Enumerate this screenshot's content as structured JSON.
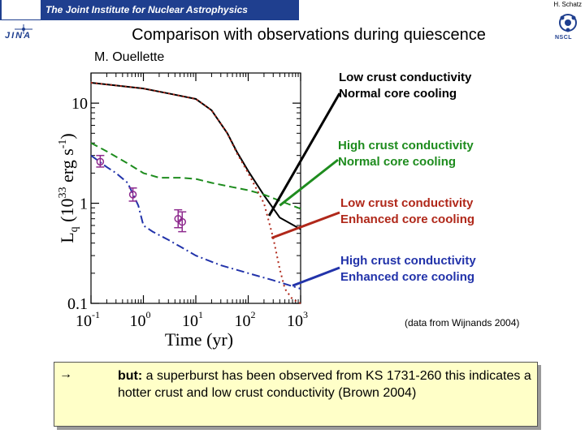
{
  "header": {
    "banner_text": "The Joint Institute for Nuclear Astrophysics",
    "jina_label": "JINA",
    "author": "H. Schatz",
    "nscl_label": "NSCL"
  },
  "slide": {
    "title": "Comparison with observations during quiescence",
    "credit": "M. Ouellette",
    "data_note": "(data from Wijnands 2004)"
  },
  "annotations": [
    {
      "line1": "Low crust conductivity",
      "line2": "Normal core cooling",
      "color": "#000000"
    },
    {
      "line1": "High crust conductivity",
      "line2": "Normal core cooling",
      "color": "#1e8c1e"
    },
    {
      "line1": "Low crust conductivity",
      "line2": "Enhanced core cooling",
      "color": "#b0281a"
    },
    {
      "line1": "High crust conductivity",
      "line2": "Enhanced core cooling",
      "color": "#2233aa"
    }
  ],
  "callout": {
    "arrow": "→",
    "lead": "but:",
    "rest": " a superburst has been observed from KS 1731-260 this indicates a hotter crust and low crust conductivity (Brown 2004)"
  },
  "chart_data": {
    "type": "line",
    "xlabel": "Time (yr)",
    "ylabel": "L_q (10^33 erg s^-1)",
    "xscale": "log",
    "yscale": "log",
    "xlim": [
      0.1,
      1000
    ],
    "ylim": [
      0.1,
      20
    ],
    "xticks": [
      "10^-1",
      "10^0",
      "10^1",
      "10^2",
      "10^3"
    ],
    "yticks": [
      "0.1",
      "1",
      "10"
    ],
    "series": [
      {
        "color": "#000000",
        "style": "solid",
        "x": [
          0.1,
          0.3,
          1,
          3,
          10,
          20,
          40,
          60,
          100,
          200,
          400,
          1000
        ],
        "y": [
          16,
          15,
          14,
          12.5,
          11,
          8.5,
          5,
          3.3,
          2.1,
          1.2,
          0.72,
          0.55
        ]
      },
      {
        "color": "#1e8c1e",
        "style": "dashed",
        "x": [
          0.1,
          0.2,
          0.5,
          1,
          2,
          5,
          10,
          20,
          50,
          100,
          200,
          400,
          1000
        ],
        "y": [
          4.0,
          3.3,
          2.5,
          2.0,
          1.8,
          1.8,
          1.75,
          1.6,
          1.45,
          1.35,
          1.22,
          1.06,
          0.88
        ]
      },
      {
        "color": "#b0281a",
        "style": "dotted",
        "x": [
          0.1,
          0.3,
          1,
          3,
          10,
          20,
          40,
          60,
          100,
          200,
          300,
          400,
          500,
          700,
          1000
        ],
        "y": [
          16,
          15,
          14,
          12.5,
          11,
          8.5,
          5,
          3.2,
          2.0,
          1.0,
          0.45,
          0.22,
          0.14,
          0.11,
          0.1
        ]
      },
      {
        "color": "#2233aa",
        "style": "dashdot",
        "x": [
          0.1,
          0.2,
          0.3,
          0.5,
          0.8,
          1,
          1.5,
          3,
          5,
          10,
          30,
          100,
          300,
          1000
        ],
        "y": [
          3.0,
          2.3,
          2.0,
          1.6,
          0.95,
          0.6,
          0.52,
          0.43,
          0.37,
          0.3,
          0.24,
          0.2,
          0.17,
          0.14
        ]
      }
    ],
    "observations": {
      "color": "#8e2a8e",
      "points": [
        {
          "x": 0.15,
          "y": 2.6,
          "lo": 2.3,
          "hi": 3.0
        },
        {
          "x": 0.63,
          "y": 1.22,
          "lo": 1.05,
          "hi": 1.42
        },
        {
          "x": 4.6,
          "y": 0.7,
          "lo": 0.57,
          "hi": 0.86
        },
        {
          "x": 5.5,
          "y": 0.65,
          "lo": 0.52,
          "hi": 0.82
        }
      ]
    }
  }
}
